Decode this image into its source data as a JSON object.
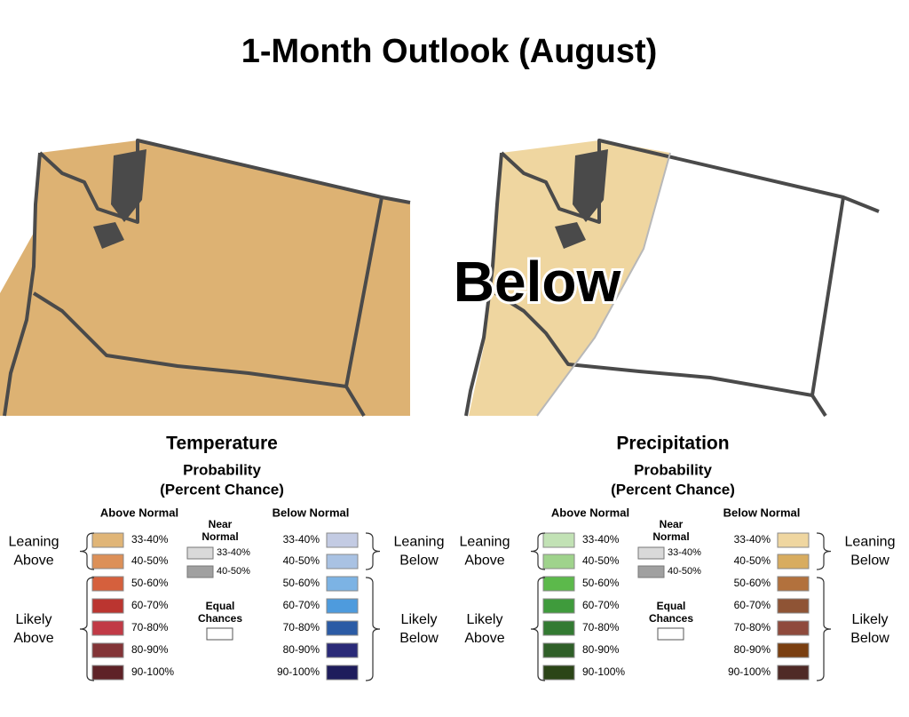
{
  "title": "1-Month Outlook (August)",
  "map_label": "Below",
  "legends": [
    {
      "title": "Temperature",
      "subtitle": [
        "Probability",
        "(Percent Chance)"
      ],
      "above": {
        "heading": "Above Normal",
        "swatches": [
          {
            "label": "33-40%",
            "color": "#e0b577"
          },
          {
            "label": "40-50%",
            "color": "#dc9058"
          },
          {
            "label": "50-60%",
            "color": "#d5603d"
          },
          {
            "label": "60-70%",
            "color": "#bb3530"
          },
          {
            "label": "70-80%",
            "color": "#c13a46"
          },
          {
            "label": "80-90%",
            "color": "#833437"
          },
          {
            "label": "90-100%",
            "color": "#5e2227"
          }
        ]
      },
      "near": {
        "heading": [
          "Near",
          "Normal"
        ],
        "swatches": [
          {
            "label": "33-40%",
            "color": "#d9d9d9"
          },
          {
            "label": "40-50%",
            "color": "#a0a0a0"
          }
        ]
      },
      "equal": {
        "heading": [
          "Equal",
          "Chances"
        ],
        "color": "#ffffff"
      },
      "below": {
        "heading": "Below Normal",
        "swatches": [
          {
            "label": "33-40%",
            "color": "#c3cbe3"
          },
          {
            "label": "40-50%",
            "color": "#a9c2e3"
          },
          {
            "label": "50-60%",
            "color": "#7cb3e4"
          },
          {
            "label": "60-70%",
            "color": "#4e9bdd"
          },
          {
            "label": "70-80%",
            "color": "#2b5ba5"
          },
          {
            "label": "80-90%",
            "color": "#2a2a78"
          },
          {
            "label": "90-100%",
            "color": "#1e1c5c"
          }
        ]
      },
      "left_groups": [
        [
          "Leaning",
          "Above"
        ],
        [
          "Likely",
          "Above"
        ]
      ],
      "right_groups": [
        [
          "Leaning",
          "Below"
        ],
        [
          "Likely",
          "Below"
        ]
      ]
    },
    {
      "title": "Precipitation",
      "subtitle": [
        "Probability",
        "(Percent Chance)"
      ],
      "above": {
        "heading": "Above Normal",
        "swatches": [
          {
            "label": "33-40%",
            "color": "#c2e2b5"
          },
          {
            "label": "40-50%",
            "color": "#9fd38c"
          },
          {
            "label": "50-60%",
            "color": "#5cb94b"
          },
          {
            "label": "60-70%",
            "color": "#3f9b3c"
          },
          {
            "label": "70-80%",
            "color": "#337a32"
          },
          {
            "label": "80-90%",
            "color": "#2f5f28"
          },
          {
            "label": "90-100%",
            "color": "#2b4517"
          }
        ]
      },
      "near": {
        "heading": [
          "Near",
          "Normal"
        ],
        "swatches": [
          {
            "label": "33-40%",
            "color": "#d9d9d9"
          },
          {
            "label": "40-50%",
            "color": "#a0a0a0"
          }
        ]
      },
      "equal": {
        "heading": [
          "Equal",
          "Chances"
        ],
        "color": "#ffffff"
      },
      "below": {
        "heading": "Below Normal",
        "swatches": [
          {
            "label": "33-40%",
            "color": "#efd6a0"
          },
          {
            "label": "40-50%",
            "color": "#d8ac5f"
          },
          {
            "label": "50-60%",
            "color": "#b2713d"
          },
          {
            "label": "60-70%",
            "color": "#8f5435"
          },
          {
            "label": "70-80%",
            "color": "#8f4a3c"
          },
          {
            "label": "80-90%",
            "color": "#7a3f10"
          },
          {
            "label": "90-100%",
            "color": "#4f2a26"
          }
        ]
      },
      "left_groups": [
        [
          "Leaning",
          "Above"
        ],
        [
          "Likely",
          "Above"
        ]
      ],
      "right_groups": [
        [
          "Leaning",
          "Below"
        ],
        [
          "Likely",
          "Below"
        ]
      ]
    }
  ]
}
